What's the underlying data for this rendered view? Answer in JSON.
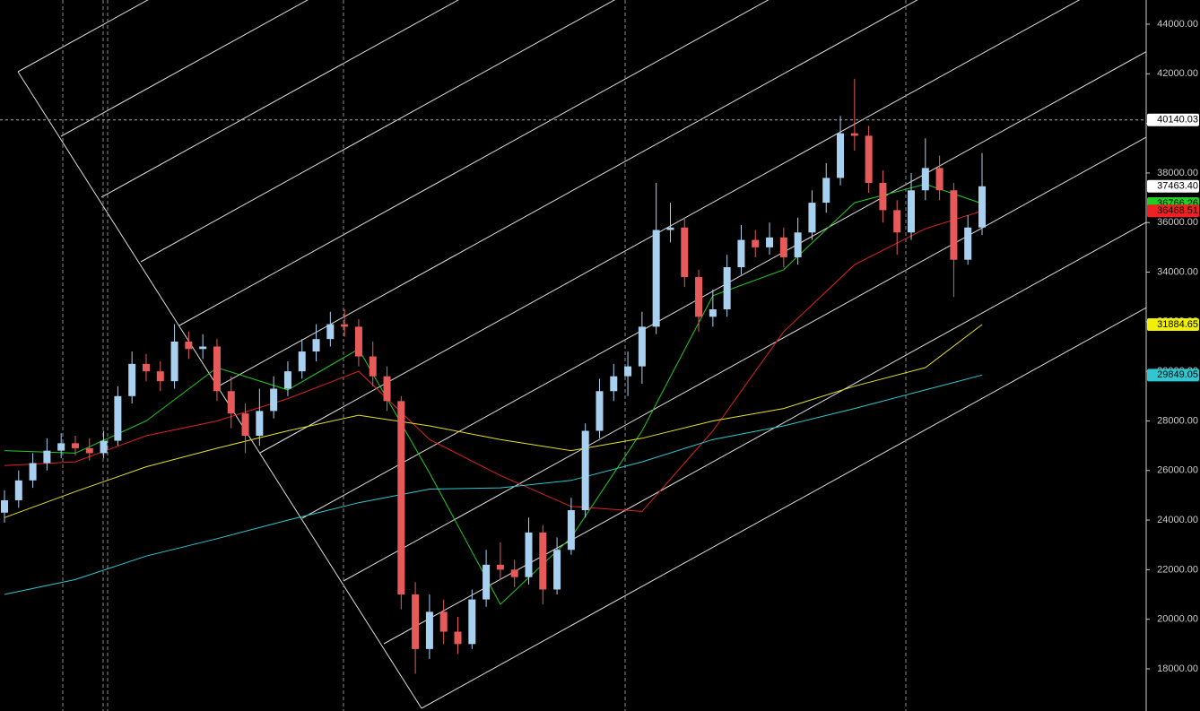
{
  "chart_data": {
    "type": "candlestick",
    "up_color": "#a8d0f0",
    "down_color": "#e65a5a",
    "open": [
      24300,
      24800,
      25600,
      26300,
      26800,
      27100,
      26900,
      26700,
      27200,
      29000,
      30300,
      30000,
      29600,
      31200,
      30900,
      31000,
      29200,
      28300,
      27400,
      28400,
      29300,
      30000,
      30800,
      31300,
      31900,
      31800,
      30600,
      29800,
      28800,
      21000,
      18800,
      20300,
      19500,
      19000,
      20800,
      22200,
      22000,
      21700,
      23500,
      21200,
      22800,
      24400,
      27600,
      29200,
      29800,
      30200,
      31800,
      35700,
      35800,
      33800,
      32200,
      32500,
      34200,
      35300,
      35000,
      35400,
      34600,
      35600,
      36800,
      37800,
      39600,
      39500,
      37600,
      36500,
      35600,
      37300,
      38200,
      37300,
      34500,
      35800
    ],
    "high": [
      25200,
      26000,
      26700,
      27300,
      27500,
      27400,
      27300,
      27600,
      29400,
      30800,
      30700,
      30400,
      31900,
      31600,
      31500,
      31300,
      29800,
      28700,
      29300,
      29800,
      30400,
      31300,
      31900,
      32400,
      32500,
      32100,
      31200,
      30200,
      29000,
      21500,
      21000,
      20800,
      20100,
      21200,
      22800,
      23100,
      22400,
      24100,
      23800,
      23300,
      24900,
      27900,
      29700,
      30300,
      30800,
      32400,
      37600,
      36800,
      36200,
      34100,
      33300,
      34700,
      35900,
      35700,
      36000,
      35800,
      36200,
      37300,
      38400,
      40300,
      41800,
      39900,
      38100,
      36900,
      38000,
      39400,
      38700,
      37600,
      36300,
      38800
    ],
    "low": [
      23900,
      24500,
      25300,
      26000,
      26500,
      26600,
      26400,
      26500,
      27000,
      28700,
      29600,
      29200,
      29300,
      30500,
      30500,
      28800,
      27700,
      26700,
      27000,
      28100,
      29000,
      29700,
      30400,
      31000,
      31400,
      30200,
      29400,
      28400,
      20400,
      17800,
      18400,
      19000,
      18600,
      18800,
      20500,
      21600,
      21300,
      21400,
      20600,
      21000,
      22600,
      24100,
      27300,
      28800,
      29000,
      29500,
      31500,
      35200,
      33400,
      31600,
      31800,
      32200,
      33900,
      34600,
      34700,
      34200,
      34300,
      35300,
      36400,
      37500,
      38900,
      37200,
      36000,
      34700,
      35300,
      36900,
      36900,
      33000,
      34300,
      35500
    ],
    "close": [
      24800,
      25600,
      26300,
      26800,
      27100,
      26900,
      26700,
      27200,
      29000,
      30300,
      30000,
      29600,
      31200,
      30900,
      31000,
      29200,
      28300,
      27400,
      28400,
      29300,
      30000,
      30800,
      31300,
      31900,
      31800,
      30600,
      29800,
      28800,
      21000,
      18800,
      20300,
      19500,
      19000,
      20800,
      22200,
      22000,
      21700,
      23500,
      21200,
      22800,
      24400,
      27600,
      29200,
      29800,
      30200,
      31800,
      35700,
      35800,
      33800,
      32200,
      32500,
      34200,
      35300,
      35000,
      35400,
      34600,
      35600,
      36800,
      37800,
      39600,
      39500,
      37600,
      36500,
      35600,
      37300,
      38200,
      37300,
      34500,
      35800,
      37463.4
    ],
    "ma_x": [
      0,
      5,
      10,
      15,
      20,
      25,
      30,
      35,
      40,
      45,
      50,
      55,
      60,
      65,
      69
    ],
    "series": [
      {
        "color": "#22cc22",
        "values": [
          26800,
          26700,
          28000,
          30150,
          29250,
          30900,
          25900,
          20600,
          23300,
          27600,
          33050,
          34100,
          36800,
          37550,
          36766.26
        ]
      },
      {
        "color": "#dd2222",
        "values": [
          26200,
          26350,
          27400,
          28000,
          28900,
          30000,
          27250,
          25800,
          24550,
          24350,
          27600,
          31600,
          34300,
          35750,
          36468.51
        ]
      },
      {
        "color": "#e8e020",
        "values": [
          24100,
          25150,
          26150,
          26900,
          27600,
          28230,
          27800,
          27250,
          26800,
          27300,
          28000,
          28500,
          29400,
          30150,
          31884.65
        ]
      },
      {
        "color": "#30c8d0",
        "values": [
          21000,
          21600,
          22550,
          23250,
          24000,
          24700,
          25250,
          25300,
          25600,
          26350,
          27250,
          27800,
          28500,
          29250,
          29849.05
        ]
      }
    ],
    "price_labels": [
      {
        "value": 40140.03,
        "label": "40140.03",
        "color": "#ffffff"
      },
      {
        "value": 37463.4,
        "label": "37463.40",
        "color": "#ffffff"
      },
      {
        "value": 36766.26,
        "label": "36766.26",
        "color": "#22cc22"
      },
      {
        "value": 36468.51,
        "label": "36468.51",
        "color": "#ee2222"
      },
      {
        "value": 31884.65,
        "label": "31884.65",
        "color": "#f0f000"
      },
      {
        "value": 29849.05,
        "label": "29849.05",
        "color": "#30c8d0"
      }
    ],
    "crosshair": 40140.03,
    "ylim": [
      16300,
      44976
    ],
    "yticks": [
      {
        "value": 18000,
        "label": "18000.00"
      },
      {
        "value": 20000,
        "label": "20000.00"
      },
      {
        "value": 22000,
        "label": "22000.00"
      },
      {
        "value": 24000,
        "label": "24000.00"
      },
      {
        "value": 26000,
        "label": "26000.00"
      },
      {
        "value": 28000,
        "label": "28000.00"
      },
      {
        "value": 30000,
        "label": "30000.00"
      },
      {
        "value": 32000,
        "label": "32000.00"
      },
      {
        "value": 34000,
        "label": "34000.00"
      },
      {
        "value": 36000,
        "label": "36000.00"
      },
      {
        "value": 38000,
        "label": "38000.00"
      },
      {
        "value": 40000,
        "label": "40000.00"
      },
      {
        "value": 42000,
        "label": "42000.00"
      },
      {
        "value": 44000,
        "label": "44000.00"
      }
    ]
  }
}
